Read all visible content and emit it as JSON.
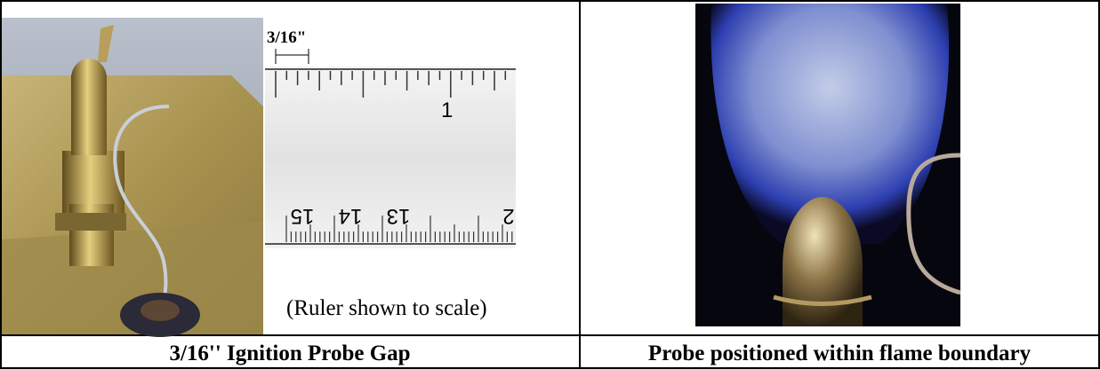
{
  "left_cell": {
    "ruler": {
      "gap_label": "3/16\"",
      "upper_number": "1",
      "lower_numbers": [
        "15",
        "14",
        "13",
        "2"
      ]
    },
    "note": "(Ruler shown to scale)",
    "caption": "3/16'' Ignition Probe Gap"
  },
  "right_cell": {
    "caption": "Probe positioned within flame boundary"
  }
}
